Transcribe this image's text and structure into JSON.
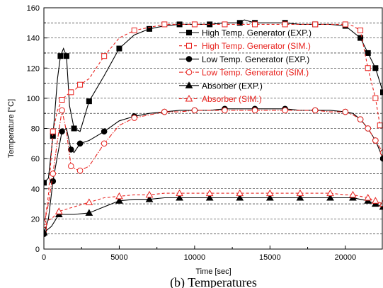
{
  "chart_data": {
    "type": "line",
    "title": "",
    "xlabel": "Time [sec]",
    "ylabel": "Temperature [°C]",
    "caption": "(b) Temperatures",
    "xlim": [
      0,
      22500
    ],
    "ylim": [
      0,
      160
    ],
    "xticks": [
      0,
      5000,
      10000,
      15000,
      20000
    ],
    "yticks": [
      0,
      20,
      40,
      60,
      80,
      100,
      120,
      140,
      160
    ],
    "grid": "horizontal dashed at every 10",
    "legend_position": "upper-right",
    "series": [
      {
        "name": "High Temp. Generator (EXP.)",
        "color": "#000000",
        "dash": "solid",
        "marker": "square-filled",
        "x": [
          0,
          300,
          600,
          900,
          1100,
          1300,
          1500,
          1700,
          2000,
          2400,
          3000,
          4000,
          5000,
          6000,
          7000,
          8000,
          9000,
          10000,
          11000,
          12000,
          13000,
          13300,
          14000,
          15000,
          16000,
          17000,
          18000,
          19000,
          20000,
          20500,
          21000,
          21500,
          22000,
          22500
        ],
        "y": [
          44,
          47,
          75,
          113,
          128,
          133,
          128,
          95,
          80,
          78,
          98,
          115,
          133,
          142,
          146,
          148,
          149,
          149,
          149,
          150,
          150,
          152,
          150,
          150,
          150,
          149,
          149,
          149,
          148,
          144,
          140,
          130,
          120,
          104
        ]
      },
      {
        "name": "High Temp. Generator (SIM.)",
        "color": "#e8231f",
        "dash": "dash",
        "marker": "square-open",
        "x": [
          0,
          300,
          600,
          900,
          1200,
          1500,
          1800,
          2100,
          2400,
          3000,
          4000,
          5000,
          6000,
          7000,
          8000,
          9000,
          10000,
          11000,
          12000,
          13000,
          14000,
          15000,
          16000,
          17000,
          18000,
          19000,
          20000,
          20500,
          21000,
          21500,
          22000,
          22300
        ],
        "y": [
          13,
          36,
          78,
          92,
          99,
          102,
          104,
          106,
          109,
          113,
          128,
          140,
          145,
          147,
          149,
          149,
          149,
          149,
          149,
          149,
          149,
          149,
          149,
          149,
          149,
          149,
          149,
          148,
          145,
          120,
          100,
          82
        ]
      },
      {
        "name": "Low Temp. Generator (EXP.)",
        "color": "#000000",
        "dash": "solid",
        "marker": "circle-filled",
        "x": [
          0,
          300,
          600,
          900,
          1200,
          1500,
          1800,
          2000,
          2400,
          3000,
          4000,
          5000,
          6000,
          7000,
          8000,
          9000,
          10000,
          11000,
          12000,
          13000,
          14000,
          15000,
          16000,
          17000,
          18000,
          19000,
          20000,
          20500,
          21000,
          21500,
          22000,
          22500
        ],
        "y": [
          10,
          20,
          45,
          62,
          78,
          80,
          66,
          64,
          70,
          72,
          78,
          85,
          88,
          90,
          91,
          92,
          92,
          92,
          93,
          93,
          93,
          93,
          93,
          92,
          92,
          92,
          91,
          90,
          86,
          80,
          72,
          60
        ]
      },
      {
        "name": "Low Temp. Generator (SIM.)",
        "color": "#e8231f",
        "dash": "dashdot",
        "marker": "circle-open",
        "x": [
          0,
          300,
          600,
          900,
          1200,
          1500,
          1800,
          2100,
          2400,
          3000,
          4000,
          5000,
          6000,
          7000,
          8000,
          9000,
          10000,
          11000,
          12000,
          13000,
          14000,
          15000,
          16000,
          17000,
          18000,
          19000,
          20000,
          20500,
          21000,
          21500,
          22000,
          22500
        ],
        "y": [
          16,
          30,
          50,
          72,
          92,
          78,
          55,
          53,
          52,
          55,
          70,
          82,
          87,
          89,
          91,
          91,
          92,
          92,
          92,
          92,
          92,
          92,
          92,
          92,
          92,
          91,
          91,
          89,
          86,
          80,
          72,
          64
        ]
      },
      {
        "name": "Absorber (EXP.)",
        "color": "#000000",
        "dash": "solid",
        "marker": "triangle-filled",
        "x": [
          0,
          500,
          1000,
          2000,
          3000,
          4000,
          5000,
          6000,
          7000,
          8000,
          9000,
          10000,
          11000,
          12000,
          13000,
          14000,
          15000,
          16000,
          17000,
          18000,
          19000,
          20000,
          20500,
          21000,
          21500,
          22000,
          22500
        ],
        "y": [
          11,
          15,
          23,
          23,
          24,
          28,
          32,
          33,
          33,
          34,
          34,
          34,
          34,
          34,
          34,
          34,
          34,
          34,
          34,
          34,
          34,
          34,
          34,
          33,
          32,
          30,
          28
        ]
      },
      {
        "name": "Absorber (SIM.)",
        "color": "#e8231f",
        "dash": "dash",
        "marker": "triangle-open",
        "x": [
          0,
          500,
          1000,
          2000,
          3000,
          4000,
          5000,
          6000,
          7000,
          8000,
          9000,
          10000,
          11000,
          12000,
          13000,
          14000,
          15000,
          16000,
          17000,
          18000,
          19000,
          20000,
          20500,
          21000,
          21500,
          22000,
          22500
        ],
        "y": [
          18,
          20,
          25,
          28,
          31,
          34,
          35,
          36,
          36,
          37,
          37,
          37,
          37,
          37,
          37,
          37,
          37,
          37,
          37,
          37,
          37,
          36,
          36,
          35,
          34,
          32,
          30
        ]
      }
    ]
  }
}
